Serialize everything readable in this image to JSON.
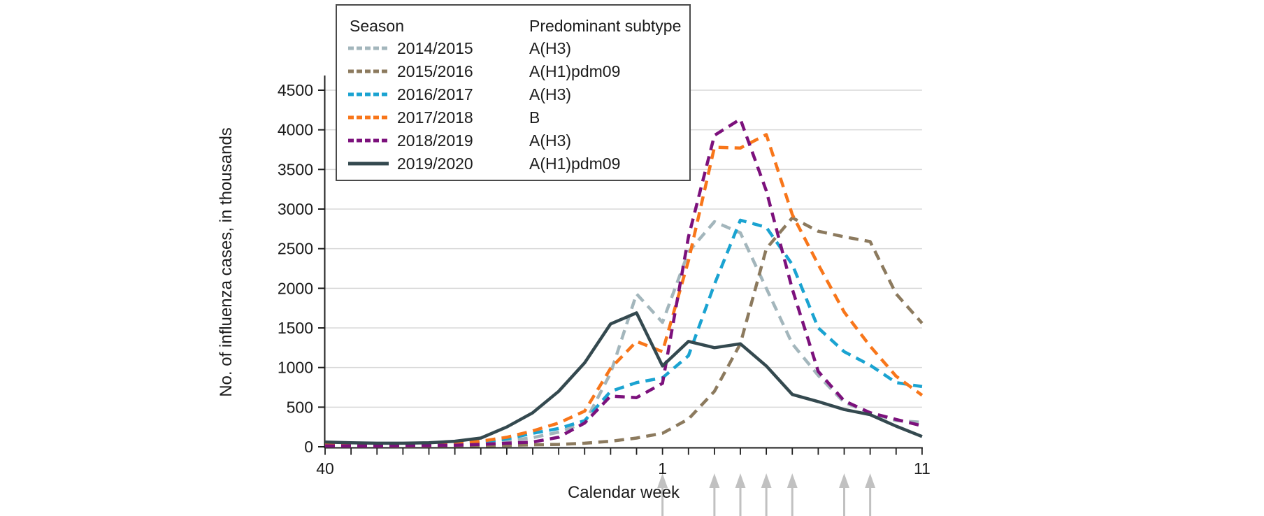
{
  "legend": {
    "season_header": "Season",
    "subtype_header": "Predominant subtype"
  },
  "chart_data": {
    "type": "line",
    "title": "",
    "xlabel": "Calendar week",
    "ylabel": "No. of influenza cases, in thousands",
    "x_categories": [
      "40",
      "41",
      "42",
      "43",
      "44",
      "45",
      "46",
      "47",
      "48",
      "49",
      "50",
      "51",
      "52",
      "1",
      "2",
      "3",
      "4",
      "5",
      "6",
      "7",
      "8",
      "9",
      "10",
      "11"
    ],
    "x_tick_labels_shown": [
      "40",
      "1",
      "11"
    ],
    "ylim": [
      0,
      4500
    ],
    "y_ticks": [
      0,
      500,
      1000,
      1500,
      2000,
      2500,
      3000,
      3500,
      4000,
      4500
    ],
    "grid": "horizontal",
    "legend_position": "top-left-inside",
    "series": [
      {
        "name": "2014/2015",
        "subtype": "A(H3)",
        "color": "#a3b6bc",
        "style": "dashed",
        "values": [
          15,
          15,
          15,
          18,
          20,
          30,
          45,
          75,
          115,
          185,
          300,
          930,
          1930,
          1570,
          2460,
          2840,
          2700,
          2000,
          1300,
          900,
          560,
          430,
          330,
          310
        ]
      },
      {
        "name": "2015/2016",
        "subtype": "A(H1)pdm09",
        "color": "#8c7a5e",
        "style": "dashed",
        "values": [
          10,
          8,
          8,
          8,
          10,
          12,
          15,
          18,
          25,
          30,
          45,
          70,
          110,
          170,
          350,
          700,
          1300,
          2500,
          2890,
          2720,
          2650,
          2590,
          1930,
          1560
        ]
      },
      {
        "name": "2016/2017",
        "subtype": "A(H3)",
        "color": "#1aa3d1",
        "style": "dashed",
        "values": [
          20,
          18,
          18,
          22,
          25,
          35,
          60,
          100,
          170,
          230,
          330,
          700,
          810,
          870,
          1150,
          2050,
          2860,
          2770,
          2300,
          1500,
          1200,
          1030,
          810,
          760
        ]
      },
      {
        "name": "2017/2018",
        "subtype": "B",
        "color": "#f8761a",
        "style": "dashed",
        "values": [
          25,
          22,
          22,
          28,
          30,
          40,
          70,
          120,
          200,
          300,
          450,
          990,
          1330,
          1200,
          2350,
          3780,
          3770,
          3940,
          2930,
          2300,
          1700,
          1270,
          890,
          650
        ]
      },
      {
        "name": "2018/2019",
        "subtype": "A(H3)",
        "color": "#7c117c",
        "style": "dashed",
        "values": [
          12,
          10,
          10,
          14,
          16,
          20,
          30,
          45,
          60,
          120,
          300,
          640,
          620,
          800,
          2650,
          3930,
          4135,
          3230,
          1990,
          950,
          580,
          430,
          345,
          265
        ]
      },
      {
        "name": "2019/2020",
        "subtype": "A(H1)pdm09",
        "color": "#34494f",
        "style": "solid",
        "values": [
          60,
          50,
          45,
          45,
          50,
          70,
          110,
          250,
          430,
          700,
          1060,
          1550,
          1690,
          1020,
          1330,
          1250,
          1300,
          1020,
          660,
          570,
          470,
          405,
          260,
          130
        ]
      }
    ],
    "annotations": {
      "arrow_weeks": [
        "1",
        "3",
        "4",
        "5",
        "6",
        "8",
        "9"
      ],
      "arrow_color": "#c1c1c1",
      "arrow_note": "gray upward arrows below axis, cut off at image bottom"
    },
    "colors": {
      "gridline": "#d8d8d8",
      "axis": "#1f1f1f",
      "text": "#1c1c1c",
      "legend_border": "#4a4a4a"
    }
  }
}
